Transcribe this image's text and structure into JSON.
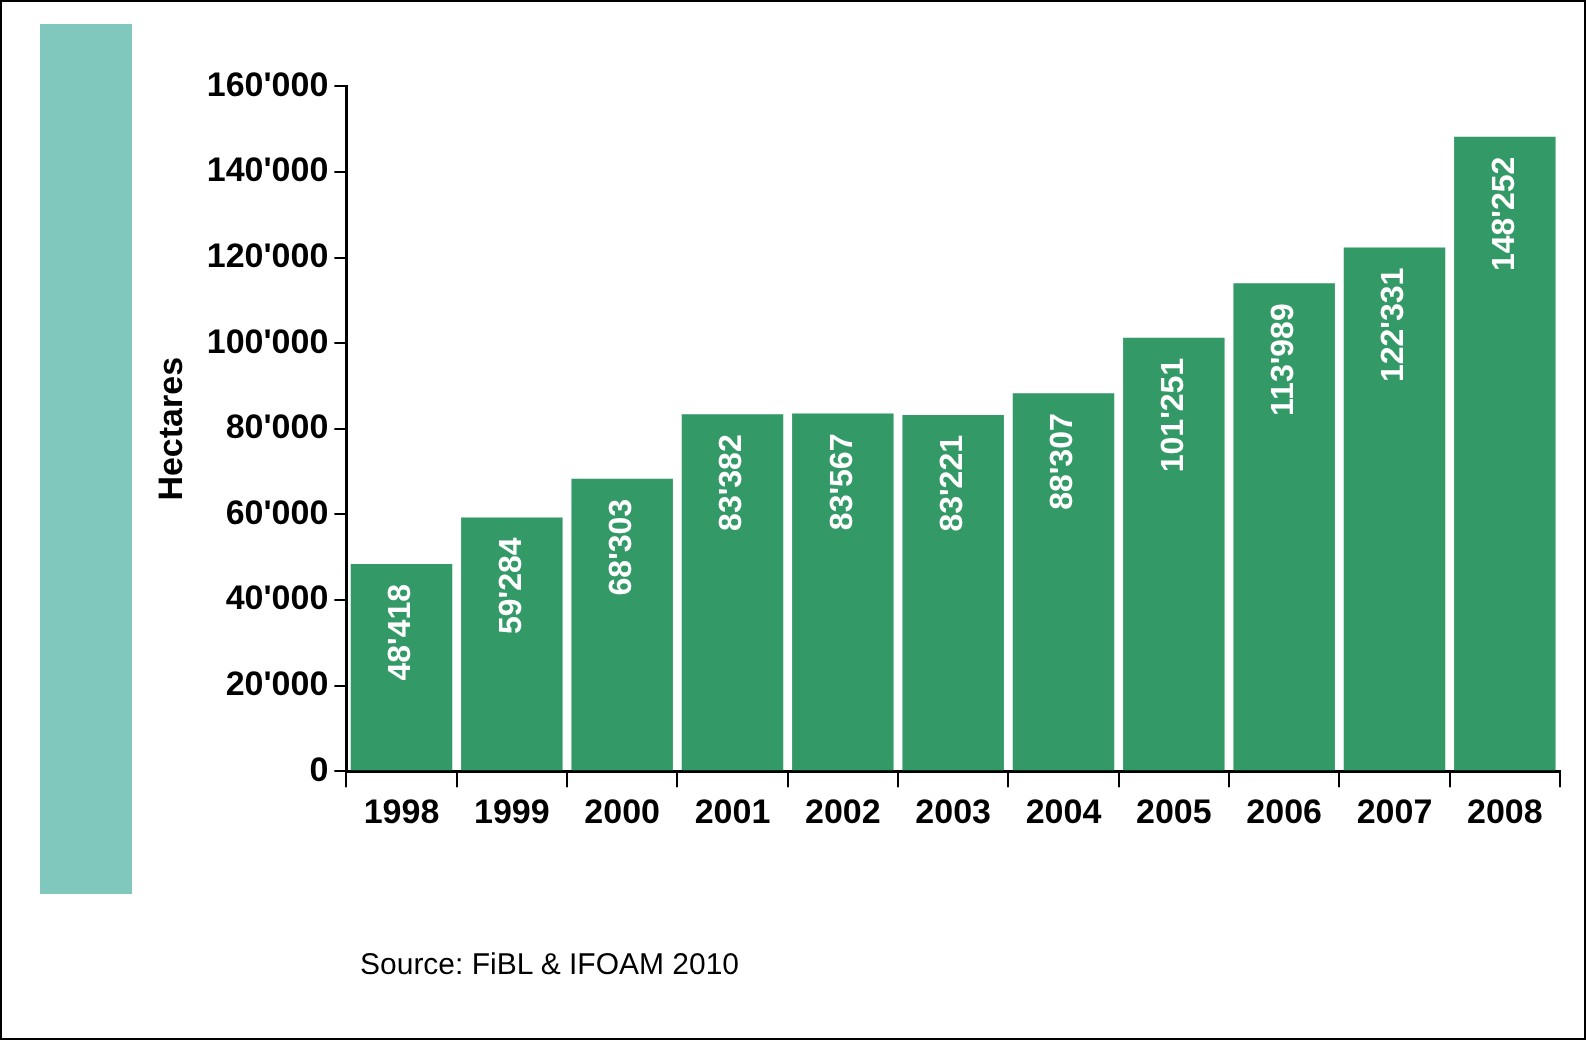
{
  "chart_data": {
    "type": "bar",
    "ylabel": "Hectares",
    "categories": [
      "1998",
      "1999",
      "2000",
      "2001",
      "2002",
      "2003",
      "2004",
      "2005",
      "2006",
      "2007",
      "2008"
    ],
    "values": [
      48418,
      59284,
      68303,
      83382,
      83567,
      83221,
      88307,
      101251,
      113989,
      122331,
      148252
    ],
    "value_labels": [
      "48'418",
      "59'284",
      "68'303",
      "83'382",
      "83'567",
      "83'221",
      "88'307",
      "101'251",
      "113'989",
      "122'331",
      "148'252"
    ],
    "color": "#339966",
    "ylim": [
      0,
      160000
    ],
    "yticks": [
      {
        "value": 0,
        "label": "0"
      },
      {
        "value": 20000,
        "label": "20'000"
      },
      {
        "value": 40000,
        "label": "40'000"
      },
      {
        "value": 60000,
        "label": "60'000"
      },
      {
        "value": 80000,
        "label": "80'000"
      },
      {
        "value": 100000,
        "label": "100'000"
      },
      {
        "value": 120000,
        "label": "120'000"
      },
      {
        "value": 140000,
        "label": "140'000"
      },
      {
        "value": 160000,
        "label": "160'000"
      }
    ],
    "grid": false,
    "legend": false,
    "annotations": [
      "Source: FiBL  & IFOAM 2010"
    ]
  }
}
